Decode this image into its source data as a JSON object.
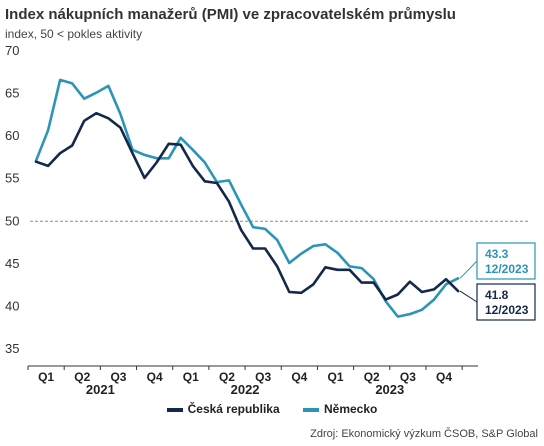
{
  "title": "Index nákupních manažerů (PMI) ve zpracovatelském průmyslu",
  "subtitle": "index, 50 < pokles aktivity",
  "source": "Zdroj: Ekonomický výzkum ČSOB, S&P Global",
  "colors": {
    "cz": "#14284b",
    "de": "#2b95b8",
    "reference": "#8a8a8a"
  },
  "chart_data": {
    "type": "line",
    "ylim": [
      35,
      70
    ],
    "yticks": [
      35,
      40,
      45,
      50,
      55,
      60,
      65,
      70
    ],
    "reference_line": 50,
    "grid": false,
    "legend_position": "bottom-center",
    "quarter_labels": [
      "Q1",
      "Q2",
      "Q3",
      "Q4",
      "Q1",
      "Q2",
      "Q3",
      "Q4",
      "Q1",
      "Q2",
      "Q3",
      "Q4"
    ],
    "years": [
      "2021",
      "2022",
      "2023"
    ],
    "x": [
      "01/2021",
      "02/2021",
      "03/2021",
      "04/2021",
      "05/2021",
      "06/2021",
      "07/2021",
      "08/2021",
      "09/2021",
      "10/2021",
      "11/2021",
      "12/2021",
      "01/2022",
      "02/2022",
      "03/2022",
      "04/2022",
      "05/2022",
      "06/2022",
      "07/2022",
      "08/2022",
      "09/2022",
      "10/2022",
      "11/2022",
      "12/2022",
      "01/2023",
      "02/2023",
      "03/2023",
      "04/2023",
      "05/2023",
      "06/2023",
      "07/2023",
      "08/2023",
      "09/2023",
      "10/2023",
      "11/2023",
      "12/2023"
    ],
    "series": [
      {
        "name": "Česká republika",
        "color": "#14284b",
        "values": [
          57.0,
          56.5,
          58.0,
          58.9,
          61.8,
          62.7,
          62.1,
          61.0,
          58.0,
          55.1,
          56.9,
          59.1,
          59.0,
          56.5,
          54.7,
          54.5,
          52.3,
          49.0,
          46.8,
          46.8,
          44.7,
          41.7,
          41.6,
          42.6,
          44.6,
          44.3,
          44.3,
          42.8,
          42.8,
          40.8,
          41.4,
          42.9,
          41.7,
          42.0,
          43.2,
          41.8
        ]
      },
      {
        "name": "Německo",
        "color": "#2b95b8",
        "values": [
          57.1,
          60.7,
          66.6,
          66.2,
          64.4,
          65.1,
          65.9,
          62.6,
          58.4,
          57.8,
          57.4,
          57.4,
          59.8,
          58.4,
          56.9,
          54.6,
          54.8,
          52.0,
          49.3,
          49.1,
          47.8,
          45.1,
          46.2,
          47.1,
          47.3,
          46.3,
          44.7,
          44.5,
          43.2,
          40.6,
          38.8,
          39.1,
          39.6,
          40.8,
          42.6,
          43.3
        ]
      }
    ],
    "callouts": [
      {
        "series": "Německo",
        "value": "43.3",
        "date": "12/2023"
      },
      {
        "series": "Česká republika",
        "value": "41.8",
        "date": "12/2023"
      }
    ]
  }
}
